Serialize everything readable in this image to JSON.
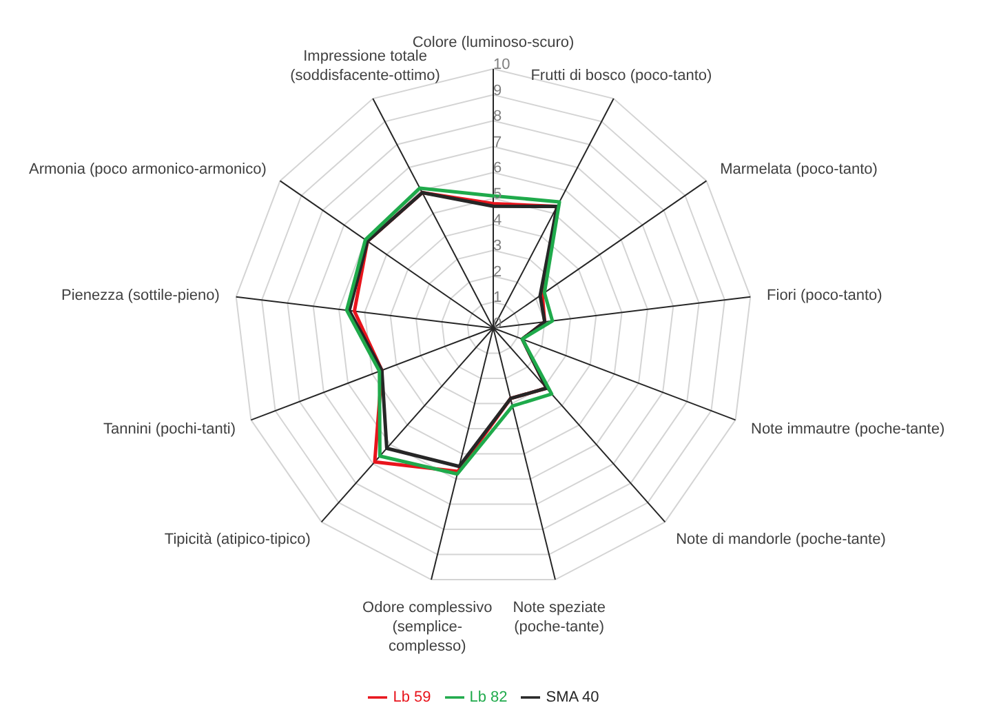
{
  "chart_data": {
    "type": "radar",
    "categories": [
      "Colore (luminoso-scuro)",
      "Frutti di bosco (poco-tanto)",
      "Marmelata (poco-tanto)",
      "Fiori (poco-tanto)",
      "Note immautre (poche-tante)",
      "Note di mandorle (poche-tante)",
      "Note speziate (poche-tante)",
      "Odore complessivo (semplice-complesso)",
      "Tipicità (atipico-tipico)",
      "Tannini (pochi-tanti)",
      "Pienezza (sottile-pieno)",
      "Armonia (poco armonico-armonico)",
      "Impressione totale (soddisfacente-ottimo)"
    ],
    "series": [
      {
        "name": "Lb 59",
        "color": "#e8141c",
        "values": [
          4.8,
          5.3,
          2.3,
          2.0,
          1.2,
          3.1,
          2.8,
          5.7,
          6.9,
          4.6,
          5.4,
          5.9,
          5.9
        ]
      },
      {
        "name": "SMA 40",
        "color": "#262626",
        "values": [
          4.7,
          5.3,
          2.2,
          2.0,
          1.2,
          3.1,
          2.8,
          5.5,
          6.2,
          4.6,
          5.6,
          5.9,
          5.9
        ]
      },
      {
        "name": "Lb 82",
        "color": "#1faa4b",
        "values": [
          5.1,
          5.5,
          2.4,
          2.3,
          1.2,
          3.4,
          3.1,
          5.8,
          6.6,
          4.7,
          5.7,
          6.0,
          6.1
        ]
      }
    ],
    "ylim": [
      0,
      10
    ],
    "yticks": [
      0,
      1,
      2,
      3,
      4,
      5,
      6,
      7,
      8,
      9,
      10
    ],
    "grid": true,
    "legend": "bottom"
  }
}
